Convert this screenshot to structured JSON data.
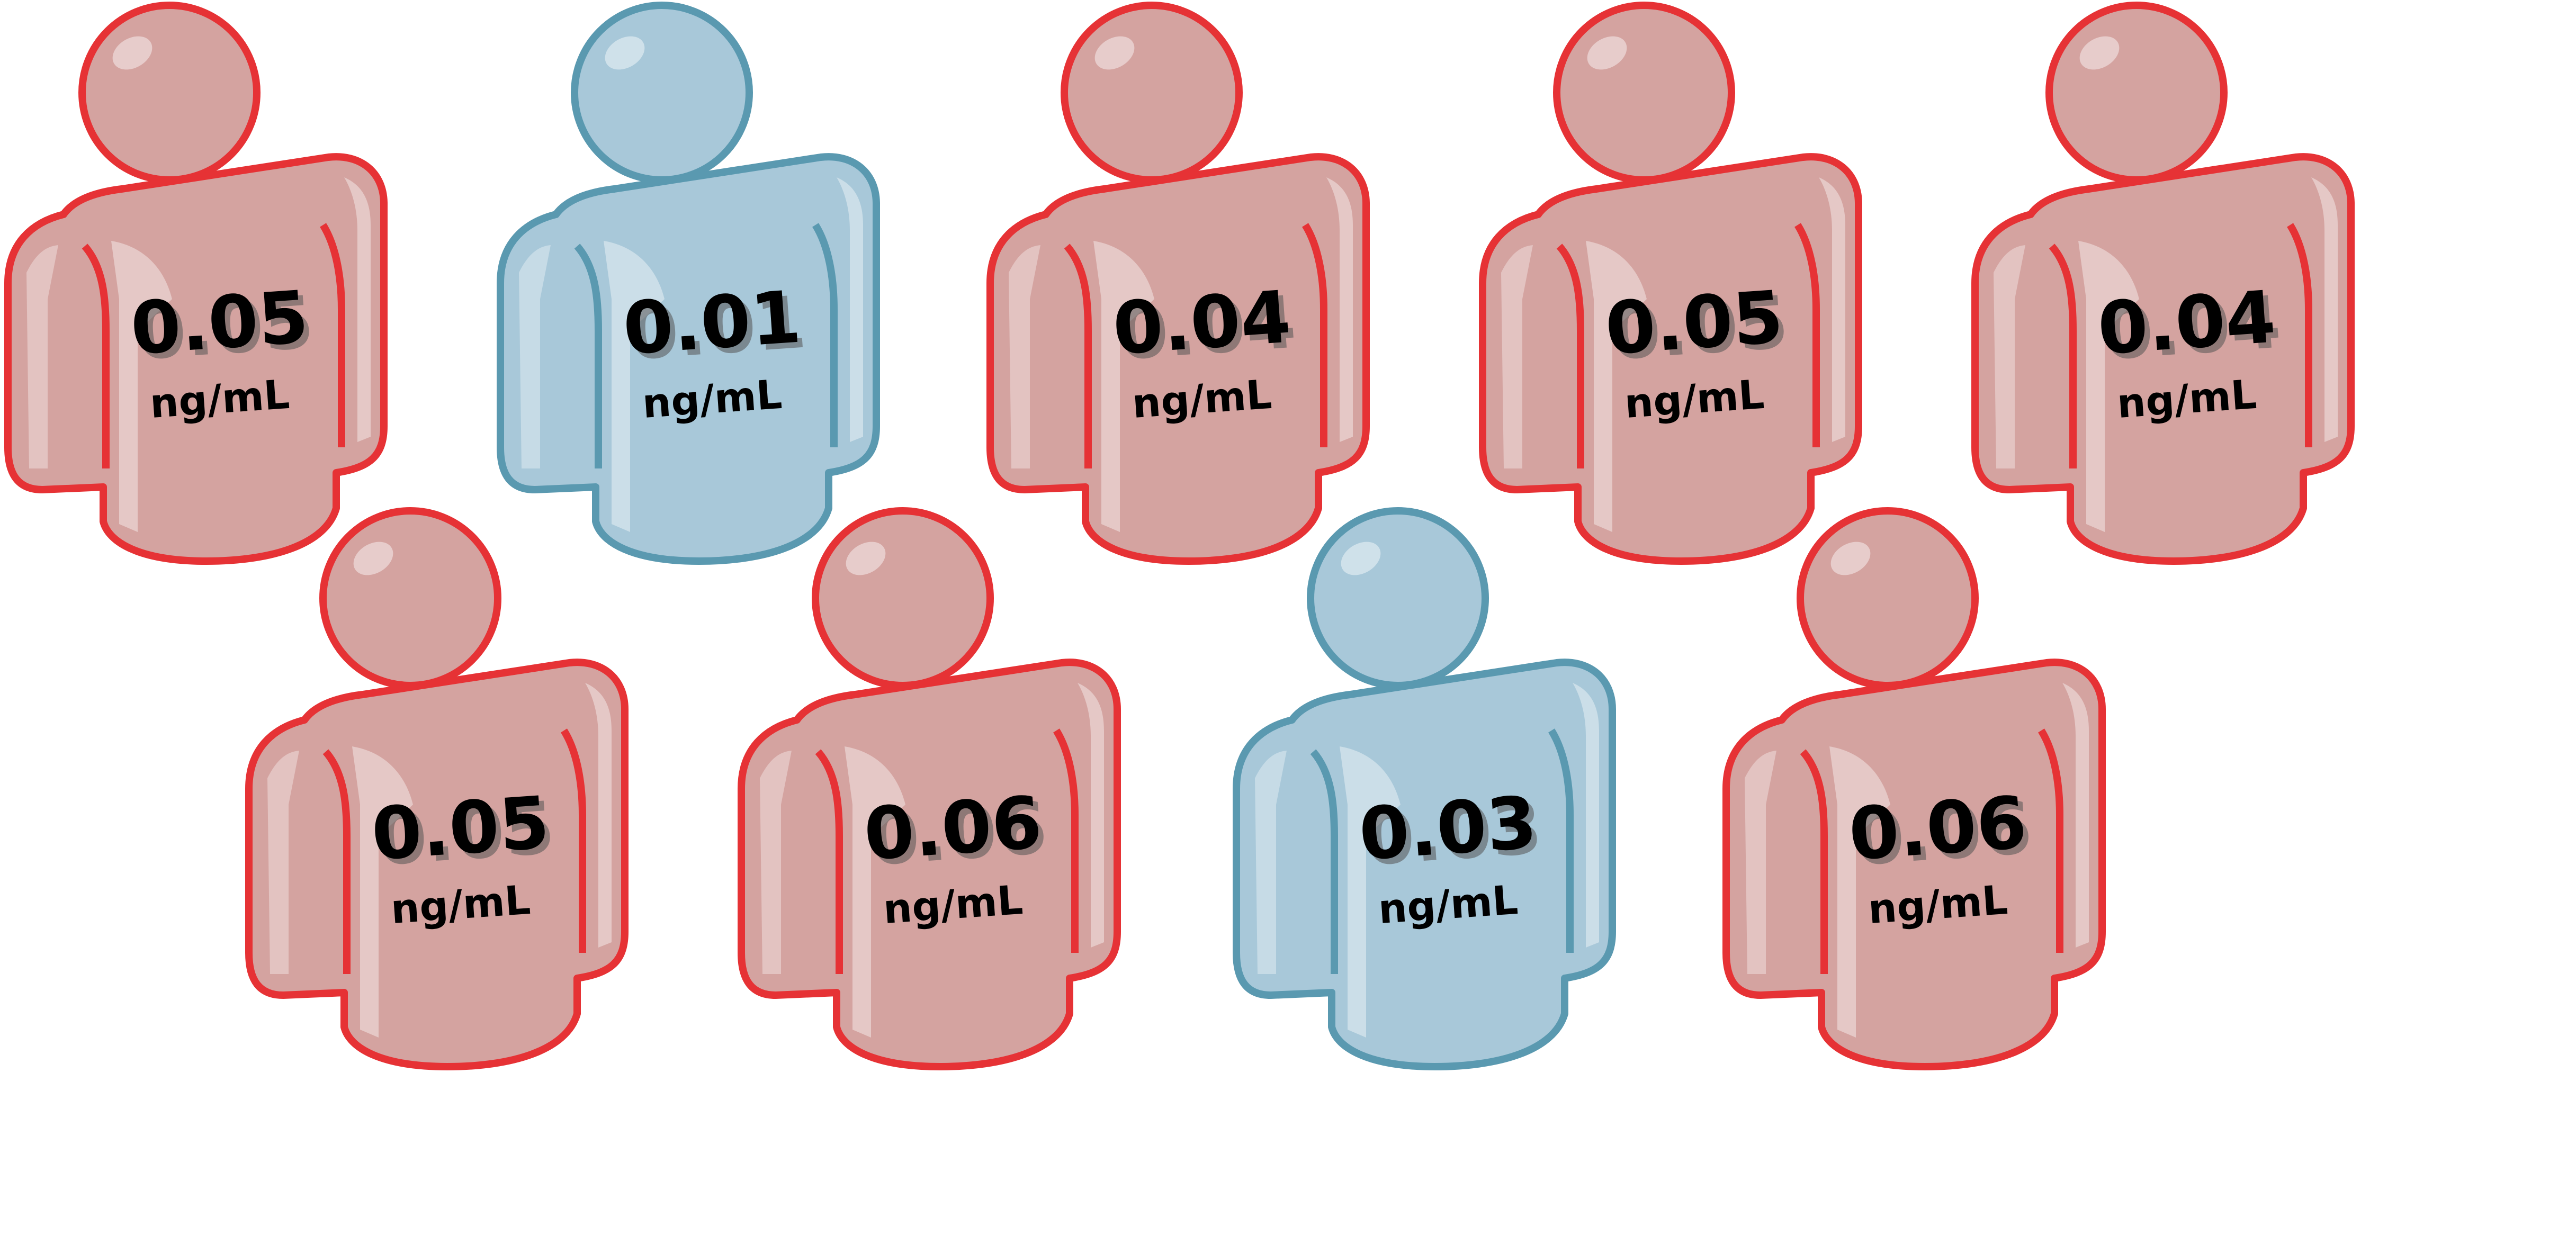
{
  "colors": {
    "high_fill": "#d4a3a0",
    "high_stroke": "#e63235",
    "low_fill": "#a8c8d9",
    "low_stroke": "#5a99b0",
    "highlight": "#ffffff",
    "text": "#000000"
  },
  "people": [
    {
      "value": "0.05",
      "unit": "ng/mL",
      "level": "high",
      "icon": "person-icon"
    },
    {
      "value": "0.01",
      "unit": "ng/mL",
      "level": "low",
      "icon": "person-icon"
    },
    {
      "value": "0.04",
      "unit": "ng/mL",
      "level": "high",
      "icon": "person-icon"
    },
    {
      "value": "0.05",
      "unit": "ng/mL",
      "level": "high",
      "icon": "person-icon"
    },
    {
      "value": "0.04",
      "unit": "ng/mL",
      "level": "high",
      "icon": "person-icon"
    },
    {
      "value": "0.05",
      "unit": "ng/mL",
      "level": "high",
      "icon": "person-icon"
    },
    {
      "value": "0.06",
      "unit": "ng/mL",
      "level": "high",
      "icon": "person-icon"
    },
    {
      "value": "0.03",
      "unit": "ng/mL",
      "level": "low",
      "icon": "person-icon"
    },
    {
      "value": "0.06",
      "unit": "ng/mL",
      "level": "high",
      "icon": "person-icon"
    }
  ]
}
